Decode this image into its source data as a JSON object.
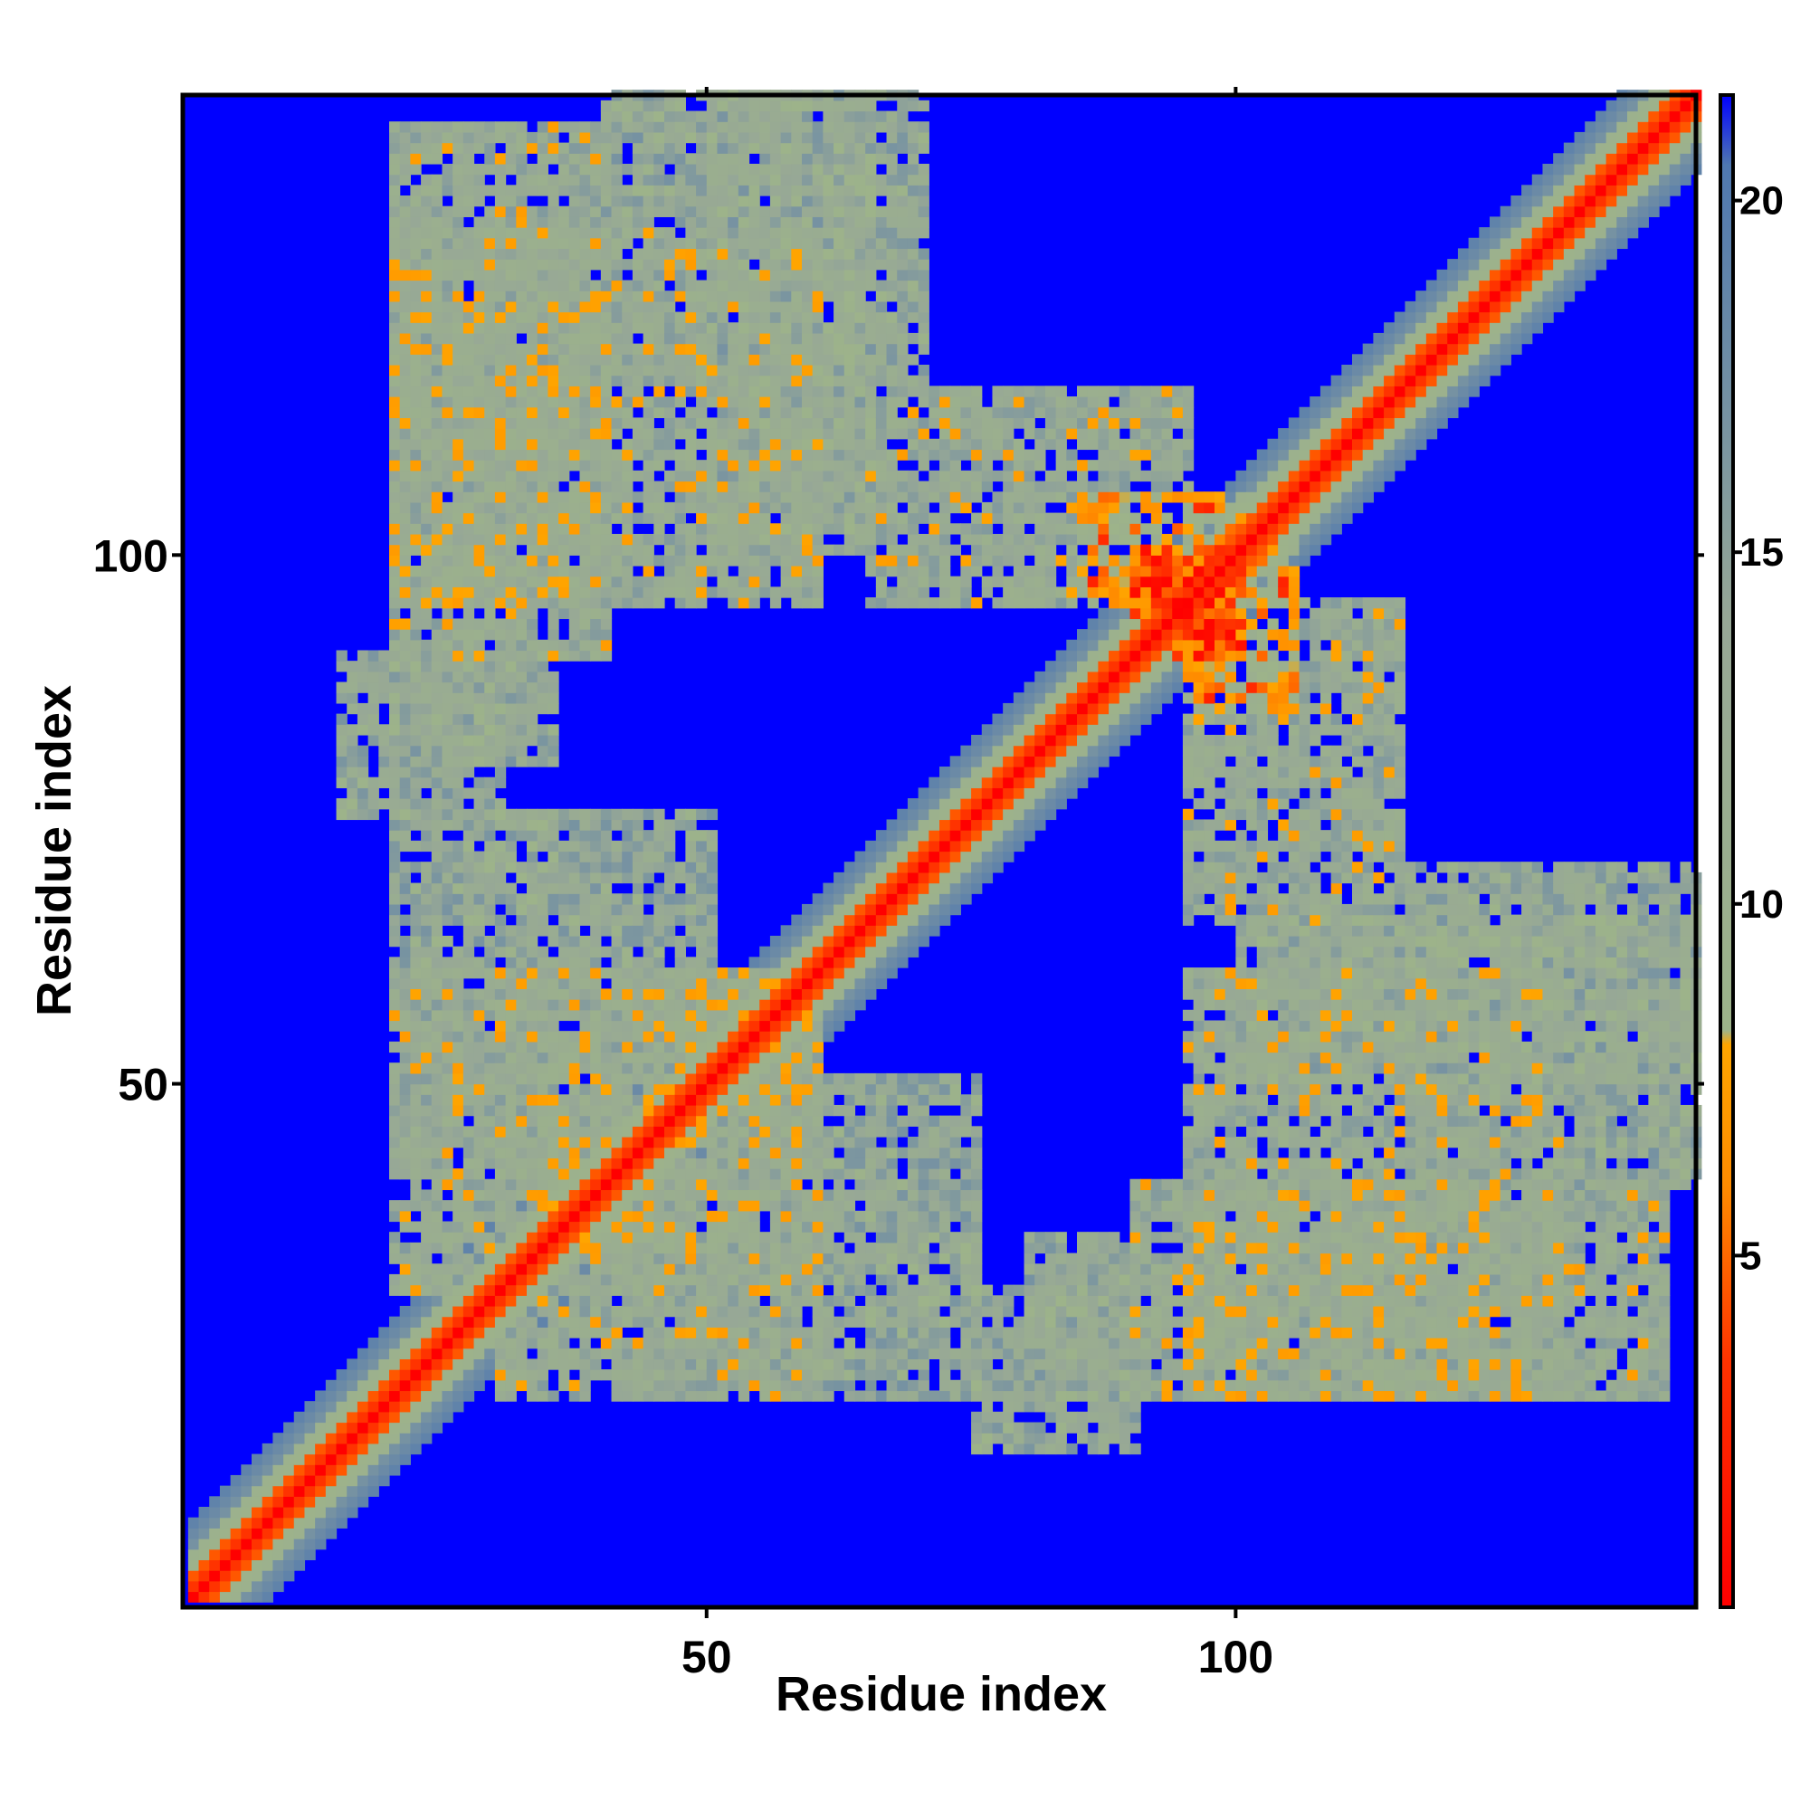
{
  "chart_data": {
    "type": "heatmap",
    "title": "",
    "xlabel": "Residue index",
    "ylabel": "Residue index",
    "n_residues": 143,
    "xlim": [
      1,
      143
    ],
    "ylim": [
      1,
      143
    ],
    "x_ticks": [
      50,
      100
    ],
    "y_ticks": [
      50,
      100
    ],
    "value_range": [
      0,
      21.5
    ],
    "colorbar": {
      "ticks": [
        5,
        10,
        15,
        20
      ],
      "position": "right",
      "stops": [
        {
          "value": 0,
          "color": "#ff0000"
        },
        {
          "value": 3.5,
          "color": "#ff3300"
        },
        {
          "value": 6,
          "color": "#ff8c00"
        },
        {
          "value": 8,
          "color": "#ffa500"
        },
        {
          "value": 8.2,
          "color": "#9db38a"
        },
        {
          "value": 14,
          "color": "#97a896"
        },
        {
          "value": 20.5,
          "color": "#4f78b0"
        },
        {
          "value": 21.5,
          "color": "#0000ff"
        }
      ]
    },
    "cutoff_value": 21.5,
    "masked_color": "#0000ff",
    "description_pattern": {
      "diagonal": "residue-residue distance near 0 along the main diagonal",
      "contact_regions": [
        {
          "i_range": [
            20,
            40
          ],
          "j_range": [
            90,
            140
          ],
          "level": 12
        },
        {
          "i_range": [
            50,
            70
          ],
          "j_range": [
            100,
            143
          ],
          "level": 13
        },
        {
          "i_range": [
            65,
            95
          ],
          "j_range": [
            95,
            115
          ],
          "level": 12
        },
        {
          "i_range": [
            85,
            100
          ],
          "j_range": [
            95,
            105
          ],
          "level": 7
        },
        {
          "i_range": [
            90,
            100
          ],
          "j_range": [
            90,
            100
          ],
          "level": 5
        },
        {
          "i_range": [
            95,
            130
          ],
          "j_range": [
            20,
            60
          ],
          "level": 12
        },
        {
          "i_range": [
            100,
            143
          ],
          "j_range": [
            40,
            65
          ],
          "level": 13
        },
        {
          "i_range": [
            30,
            60
          ],
          "j_range": [
            20,
            60
          ],
          "level": 12
        },
        {
          "i_range": [
            55,
            75
          ],
          "j_range": [
            20,
            50
          ],
          "level": 13
        },
        {
          "i_range": [
            80,
            90
          ],
          "j_range": [
            20,
            35
          ],
          "level": 13
        },
        {
          "i_range": [
            15,
            30
          ],
          "j_range": [
            75,
            90
          ],
          "level": 13
        }
      ]
    }
  }
}
